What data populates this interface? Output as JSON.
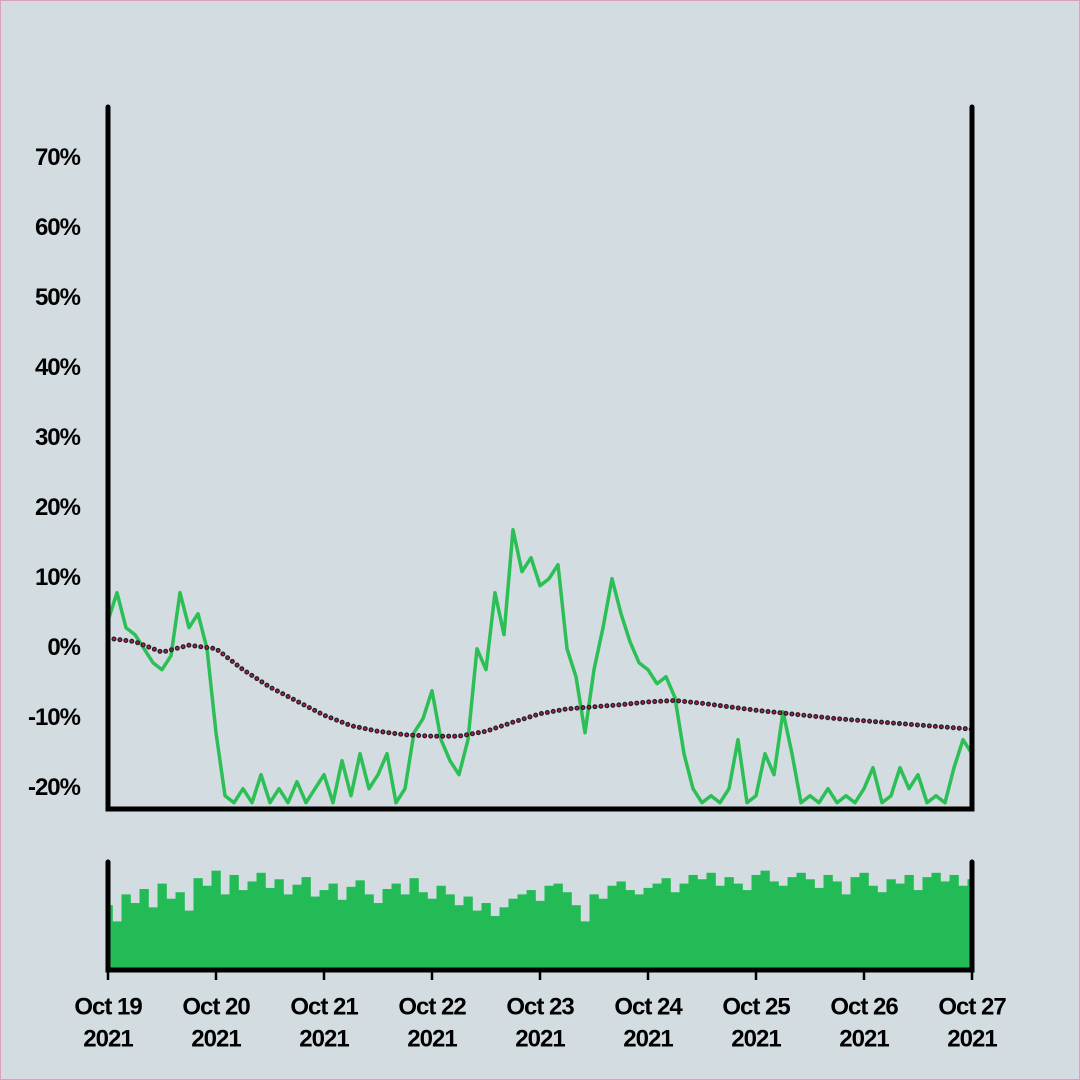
{
  "chart_data": [
    {
      "type": "line",
      "xlim": [
        "2021-10-19",
        "2021-10-27"
      ],
      "ylim": [
        -22.9,
        77.4
      ],
      "yticks": [
        {
          "value": -20,
          "label": "-20%"
        },
        {
          "value": -10,
          "label": "-10%"
        },
        {
          "value": 0,
          "label": "0%"
        },
        {
          "value": 10,
          "label": "10%"
        },
        {
          "value": 20,
          "label": "20%"
        },
        {
          "value": 30,
          "label": "30%"
        },
        {
          "value": 40,
          "label": "40%"
        },
        {
          "value": 50,
          "label": "50%"
        },
        {
          "value": 60,
          "label": "60%"
        },
        {
          "value": 70,
          "label": "70%"
        }
      ],
      "series": [
        {
          "color": "#2bbf55",
          "style": "solid",
          "values": [
            4,
            8,
            3,
            2,
            0,
            -2,
            -3,
            -1,
            8,
            3,
            5,
            0,
            -12,
            -21,
            -22,
            -20,
            -22,
            -18,
            -22,
            -20,
            -22,
            -19,
            -22,
            -20,
            -18,
            -22,
            -16,
            -21,
            -15,
            -20,
            -18,
            -15,
            -22,
            -20,
            -12,
            -10,
            -6,
            -13,
            -16,
            -18,
            -13,
            0,
            -3,
            8,
            2,
            17,
            11,
            13,
            9,
            10,
            12,
            0,
            -4,
            -12,
            -3,
            3,
            10,
            5,
            1,
            -2,
            -3,
            -5,
            -4,
            -7,
            -15,
            -20,
            -22,
            -21,
            -22,
            -20,
            -13,
            -22,
            -21,
            -15,
            -18,
            -9,
            -15,
            -22,
            -21,
            -22,
            -20,
            -22,
            -21,
            -22,
            -20,
            -17,
            -22,
            -21,
            -17,
            -20,
            -18,
            -22,
            -21,
            -22,
            -17,
            -13,
            -15
          ]
        },
        {
          "color": "#c2185b",
          "style": "dotted",
          "values": [
            1.5,
            1,
            -0.5,
            0.5,
            0,
            -3,
            -5.5,
            -7.5,
            -9.5,
            -11,
            -11.8,
            -12.3,
            -12.5,
            -12.5,
            -11.8,
            -10.5,
            -9.3,
            -8.6,
            -8.3,
            -8,
            -7.6,
            -7.4,
            -7.8,
            -8.3,
            -8.8,
            -9.2,
            -9.6,
            -10,
            -10.3,
            -10.6,
            -10.9,
            -11.2,
            -11.5
          ]
        }
      ]
    },
    {
      "type": "bar",
      "xlim": [
        "2021-10-19",
        "2021-10-27"
      ],
      "ylim": [
        0,
        100
      ],
      "color": "#22bb55",
      "xticks": [
        {
          "value": "2021-10-19",
          "label": [
            "Oct 19",
            "2021"
          ]
        },
        {
          "value": "2021-10-20",
          "label": [
            "Oct 20",
            "2021"
          ]
        },
        {
          "value": "2021-10-21",
          "label": [
            "Oct 21",
            "2021"
          ]
        },
        {
          "value": "2021-10-22",
          "label": [
            "Oct 22",
            "2021"
          ]
        },
        {
          "value": "2021-10-23",
          "label": [
            "Oct 23",
            "2021"
          ]
        },
        {
          "value": "2021-10-24",
          "label": [
            "Oct 24",
            "2021"
          ]
        },
        {
          "value": "2021-10-25",
          "label": [
            "Oct 25",
            "2021"
          ]
        },
        {
          "value": "2021-10-26",
          "label": [
            "Oct 26",
            "2021"
          ]
        },
        {
          "value": "2021-10-27",
          "label": [
            "Oct 27",
            "2021"
          ]
        }
      ],
      "values": [
        60,
        45,
        70,
        62,
        75,
        58,
        80,
        66,
        72,
        55,
        85,
        78,
        92,
        70,
        88,
        74,
        82,
        90,
        76,
        84,
        70,
        79,
        86,
        68,
        74,
        80,
        65,
        77,
        83,
        70,
        62,
        75,
        80,
        70,
        85,
        72,
        66,
        78,
        70,
        60,
        68,
        55,
        62,
        50,
        58,
        66,
        70,
        74,
        64,
        78,
        80,
        72,
        60,
        45,
        70,
        66,
        78,
        82,
        74,
        70,
        76,
        80,
        85,
        72,
        80,
        88,
        84,
        90,
        78,
        86,
        80,
        74,
        88,
        92,
        82,
        78,
        86,
        90,
        84,
        76,
        88,
        82,
        70,
        86,
        90,
        78,
        72,
        84,
        80,
        88,
        74,
        86,
        90,
        82,
        88,
        78,
        84
      ]
    }
  ]
}
